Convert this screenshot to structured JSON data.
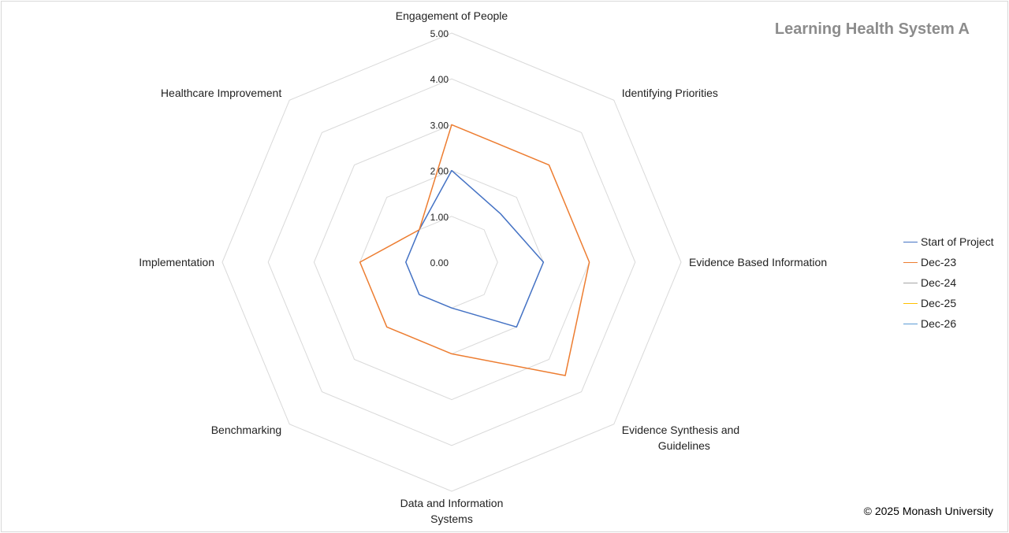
{
  "title": "Learning Health System A",
  "copyright": "© 2025 Monash University",
  "chart_data": {
    "type": "radar",
    "title": "Learning Health System A",
    "axes": [
      "Engagement of People",
      "Identifying Priorities",
      "Evidence Based Information",
      "Evidence Synthesis and Guidelines",
      "Data and Information Systems",
      "Benchmarking",
      "Implementation",
      "Healthcare Improvement"
    ],
    "rlim": [
      0,
      5
    ],
    "ticks": [
      "0.00",
      "1.00",
      "2.00",
      "3.00",
      "4.00",
      "5.00"
    ],
    "tick_values": [
      0,
      1,
      2,
      3,
      4,
      5
    ],
    "grid": true,
    "legend_position": "right",
    "series": [
      {
        "name": "Start of Project",
        "color": "#4472C4",
        "values": [
          2.0,
          1.5,
          2.0,
          2.0,
          1.0,
          1.0,
          1.0,
          1.0
        ]
      },
      {
        "name": "Dec-23",
        "color": "#ED7D31",
        "values": [
          3.0,
          3.0,
          3.0,
          3.5,
          2.0,
          2.0,
          2.0,
          1.0
        ]
      },
      {
        "name": "Dec-24",
        "color": "#A5A5A5",
        "values": []
      },
      {
        "name": "Dec-25",
        "color": "#FFC000",
        "values": []
      },
      {
        "name": "Dec-26",
        "color": "#5B9BD5",
        "values": []
      }
    ]
  }
}
